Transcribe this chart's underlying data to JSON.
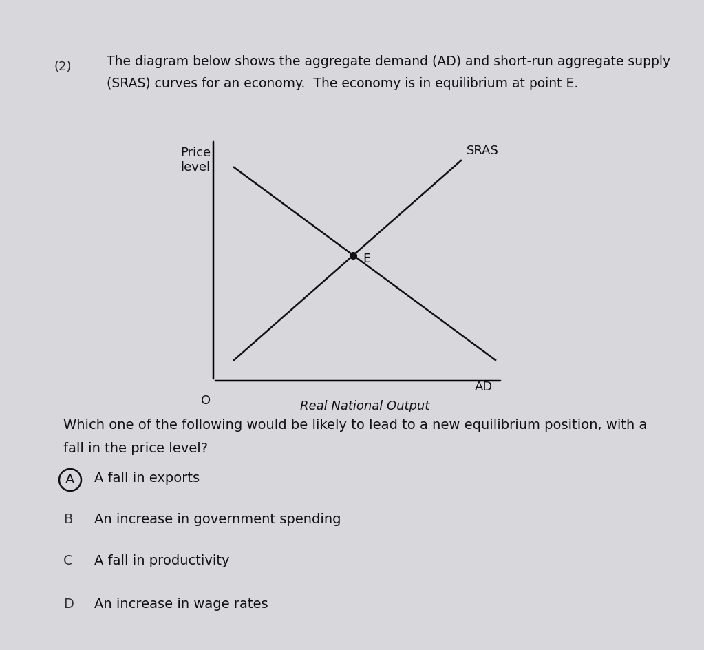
{
  "background_color": "#d8d8dc",
  "page_color": "#ededef",
  "question_number": "(2)",
  "question_text_line1": "The diagram below shows the aggregate demand (AD) and short-run aggregate supply",
  "question_text_line2": "(SRAS) curves for an economy.  The economy is in equilibrium at point E.",
  "ylabel": "Price\nlevel",
  "xlabel": "Real National Output",
  "origin_label": "O",
  "ad_label": "AD",
  "sras_label": "SRAS",
  "equilibrium_label": "E",
  "mc_question_line1": "Which one of the following would be likely to lead to a new equilibrium position, with a",
  "mc_question_line2": "fall in the price level?",
  "options": [
    {
      "letter": "A",
      "text": "A fall in exports",
      "circled": true
    },
    {
      "letter": "B",
      "text": "An increase in government spending",
      "circled": false
    },
    {
      "letter": "C",
      "text": "A fall in productivity",
      "circled": false
    },
    {
      "letter": "D",
      "text": "An increase in wage rates",
      "circled": false
    }
  ],
  "fig_width": 10.23,
  "fig_height": 9.44,
  "dpi": 100
}
